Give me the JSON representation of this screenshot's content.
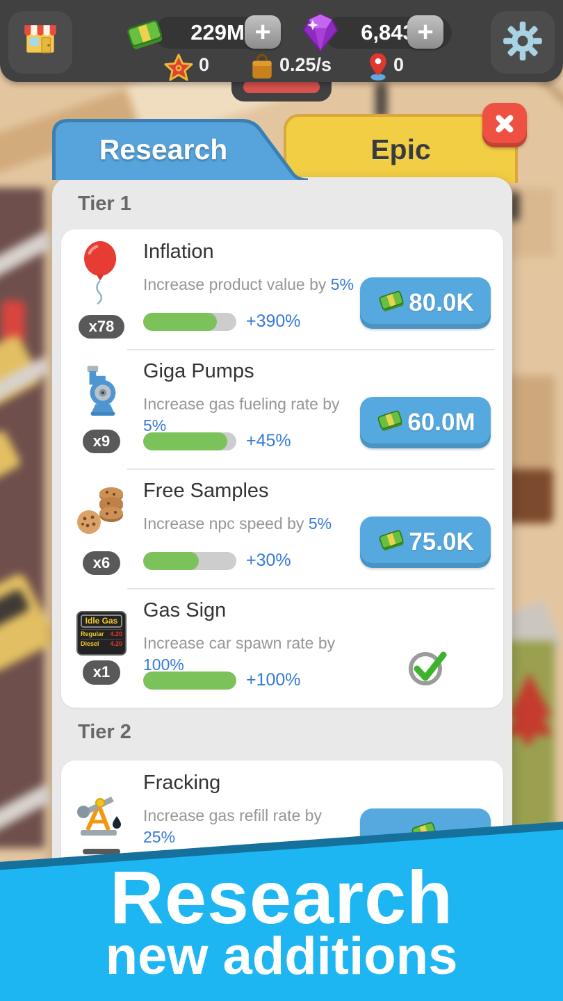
{
  "topbar": {
    "money": "229M",
    "gems": "6,843",
    "stars": "0",
    "rate": "0.25/s",
    "visitors": "0",
    "plus": "+"
  },
  "tabs": {
    "research": "Research",
    "epic": "Epic"
  },
  "gas_sign": {
    "title": "Idle Gas",
    "rows": [
      {
        "label": "Regular",
        "price": "4.20"
      },
      {
        "label": "Diesel",
        "price": "4.20"
      }
    ]
  },
  "tiers": [
    {
      "label": "Tier 1",
      "items": [
        {
          "name": "Inflation",
          "count": "x78",
          "desc": "Increase product value by",
          "value": "5%",
          "bonus": "+390%",
          "pct": 79,
          "price": "80.0K"
        },
        {
          "name": "Giga Pumps",
          "count": "x9",
          "desc": "Increase gas fueling rate by",
          "value": "5%",
          "bonus": "+45%",
          "pct": 90,
          "price": "60.0M"
        },
        {
          "name": "Free Samples",
          "count": "x6",
          "desc": "Increase npc speed by",
          "value": "5%",
          "bonus": "+30%",
          "pct": 60,
          "price": "75.0K"
        },
        {
          "name": "Gas Sign",
          "count": "x1",
          "desc": "Increase car spawn rate by",
          "value": "100%",
          "bonus": "+100%",
          "pct": 100,
          "done": true
        }
      ]
    },
    {
      "label": "Tier 2",
      "items": [
        {
          "name": "Fracking",
          "desc": "Increase gas refill rate by",
          "value": "25%",
          "price": ""
        }
      ]
    }
  ],
  "banner": {
    "line1": "Research",
    "line2": "new additions"
  },
  "colors": {
    "accent_blue": "#57a4dc",
    "accent_yellow": "#f2ce44",
    "banner_blue": "#1db6f2",
    "banner_stripe": "#15719c",
    "progress_green": "#7cc25b",
    "link_blue": "#3579d8",
    "topbar_dark": "#414141",
    "close_red": "#ee5042"
  }
}
